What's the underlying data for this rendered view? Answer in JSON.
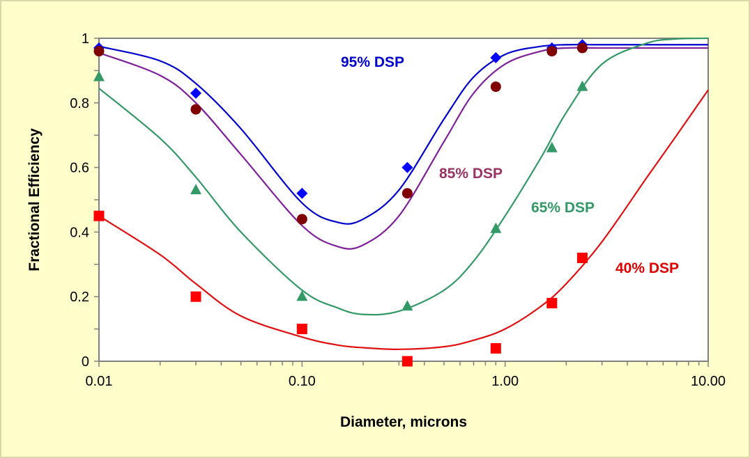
{
  "chart_data": {
    "type": "scatter",
    "title": "",
    "xlabel": "Diameter, microns",
    "ylabel": "Fractional Efficiency",
    "xscale": "log",
    "xlim": [
      0.01,
      10
    ],
    "ylim": [
      0,
      1
    ],
    "x_tick_labels": [
      "0.01",
      "0.10",
      "1.00",
      "10.00"
    ],
    "x_ticks": [
      0.01,
      0.1,
      1,
      10
    ],
    "y_tick_labels": [
      "0",
      "0.2",
      "0.4",
      "0.6",
      "0.8",
      "1"
    ],
    "y_ticks": [
      0,
      0.2,
      0.4,
      0.6,
      0.8,
      1
    ],
    "grid": false,
    "background": "#FFFFCC",
    "series": [
      {
        "name": "95% DSP",
        "color": "#0000FF",
        "line_color": "#0000CC",
        "marker": "diamond",
        "label_color": "#0000CC",
        "x": [
          0.01,
          0.03,
          0.1,
          0.33,
          0.9,
          1.7,
          2.4
        ],
        "y": [
          0.97,
          0.83,
          0.52,
          0.6,
          0.94,
          0.97,
          0.98
        ],
        "fit_x": [
          0.01,
          0.02,
          0.03,
          0.05,
          0.1,
          0.15,
          0.2,
          0.3,
          0.5,
          0.7,
          1,
          1.5,
          2,
          3,
          5,
          7,
          10
        ],
        "fit_y": [
          0.975,
          0.93,
          0.86,
          0.72,
          0.49,
          0.43,
          0.44,
          0.53,
          0.75,
          0.88,
          0.95,
          0.975,
          0.98,
          0.98,
          0.98,
          0.98,
          0.98
        ]
      },
      {
        "name": "85% DSP",
        "color": "#800000",
        "line_color": "#7F1F99",
        "marker": "circle",
        "label_color": "#993366",
        "x": [
          0.01,
          0.03,
          0.1,
          0.33,
          0.9,
          1.7,
          2.4
        ],
        "y": [
          0.96,
          0.78,
          0.44,
          0.52,
          0.85,
          0.96,
          0.97
        ],
        "fit_x": [
          0.01,
          0.02,
          0.03,
          0.05,
          0.1,
          0.15,
          0.2,
          0.3,
          0.5,
          0.7,
          1,
          1.5,
          2,
          3,
          5,
          7,
          10
        ],
        "fit_y": [
          0.955,
          0.885,
          0.8,
          0.64,
          0.42,
          0.355,
          0.36,
          0.45,
          0.68,
          0.83,
          0.92,
          0.96,
          0.97,
          0.97,
          0.97,
          0.97,
          0.97
        ]
      },
      {
        "name": "65% DSP",
        "color": "#339966",
        "line_color": "#339966",
        "marker": "triangle",
        "label_color": "#339966",
        "x": [
          0.01,
          0.03,
          0.1,
          0.33,
          0.9,
          1.7,
          2.4
        ],
        "y": [
          0.88,
          0.53,
          0.2,
          0.17,
          0.41,
          0.66,
          0.85
        ],
        "fit_x": [
          0.01,
          0.02,
          0.03,
          0.05,
          0.1,
          0.15,
          0.2,
          0.3,
          0.5,
          0.7,
          1,
          1.5,
          2,
          3,
          5,
          7,
          10
        ],
        "fit_y": [
          0.845,
          0.69,
          0.57,
          0.4,
          0.22,
          0.165,
          0.145,
          0.155,
          0.22,
          0.31,
          0.45,
          0.63,
          0.77,
          0.92,
          0.985,
          0.998,
          1.0
        ]
      },
      {
        "name": "40% DSP",
        "color": "#FF0000",
        "line_color": "#E01010",
        "marker": "square",
        "label_color": "#DD0000",
        "x": [
          0.01,
          0.03,
          0.1,
          0.33,
          0.9,
          1.7,
          2.4
        ],
        "y": [
          0.45,
          0.2,
          0.1,
          0.0,
          0.04,
          0.18,
          0.32
        ],
        "fit_x": [
          0.01,
          0.02,
          0.03,
          0.05,
          0.1,
          0.15,
          0.2,
          0.3,
          0.5,
          0.7,
          1,
          1.5,
          2,
          3,
          5,
          7,
          10
        ],
        "fit_y": [
          0.45,
          0.33,
          0.24,
          0.14,
          0.075,
          0.05,
          0.042,
          0.037,
          0.045,
          0.065,
          0.1,
          0.17,
          0.24,
          0.37,
          0.57,
          0.7,
          0.84
        ]
      }
    ]
  }
}
